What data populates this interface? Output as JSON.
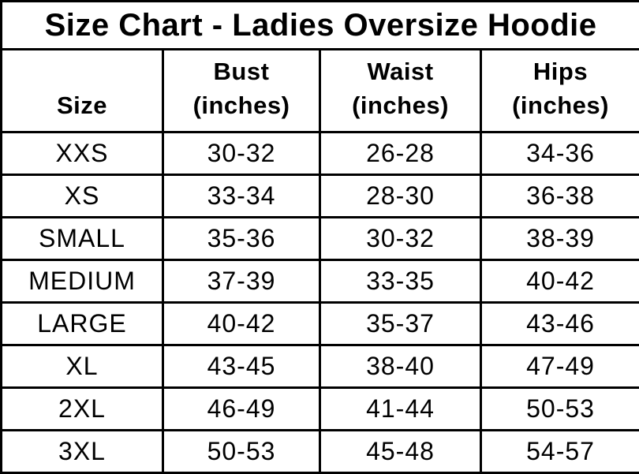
{
  "title": "Size Chart - Ladies Oversize Hoodie",
  "colors": {
    "text": "#000000",
    "border": "#000000",
    "background": "#ffffff"
  },
  "table": {
    "columns": [
      {
        "label": "Size",
        "unit": ""
      },
      {
        "label": "Bust",
        "unit": "(inches)"
      },
      {
        "label": "Waist",
        "unit": "(inches)"
      },
      {
        "label": "Hips",
        "unit": "(inches)"
      }
    ],
    "rows": [
      {
        "size": "XXS",
        "bust": "30-32",
        "waist": "26-28",
        "hips": "34-36"
      },
      {
        "size": "XS",
        "bust": "33-34",
        "waist": "28-30",
        "hips": "36-38"
      },
      {
        "size": "SMALL",
        "bust": "35-36",
        "waist": "30-32",
        "hips": "38-39"
      },
      {
        "size": "MEDIUM",
        "bust": "37-39",
        "waist": "33-35",
        "hips": "40-42"
      },
      {
        "size": "LARGE",
        "bust": "40-42",
        "waist": "35-37",
        "hips": "43-46"
      },
      {
        "size": "XL",
        "bust": "43-45",
        "waist": "38-40",
        "hips": "47-49"
      },
      {
        "size": "2XL",
        "bust": "46-49",
        "waist": "41-44",
        "hips": "50-53"
      },
      {
        "size": "3XL",
        "bust": "50-53",
        "waist": "45-48",
        "hips": "54-57"
      }
    ]
  },
  "chart_data": {
    "type": "table",
    "title": "Size Chart - Ladies Oversize Hoodie",
    "columns": [
      "Size",
      "Bust (inches)",
      "Waist (inches)",
      "Hips (inches)"
    ],
    "rows": [
      [
        "XXS",
        "30-32",
        "26-28",
        "34-36"
      ],
      [
        "XS",
        "33-34",
        "28-30",
        "36-38"
      ],
      [
        "SMALL",
        "35-36",
        "30-32",
        "38-39"
      ],
      [
        "MEDIUM",
        "37-39",
        "33-35",
        "40-42"
      ],
      [
        "LARGE",
        "40-42",
        "35-37",
        "43-46"
      ],
      [
        "XL",
        "43-45",
        "38-40",
        "47-49"
      ],
      [
        "2XL",
        "46-49",
        "41-44",
        "50-53"
      ],
      [
        "3XL",
        "50-53",
        "45-48",
        "54-57"
      ]
    ]
  }
}
